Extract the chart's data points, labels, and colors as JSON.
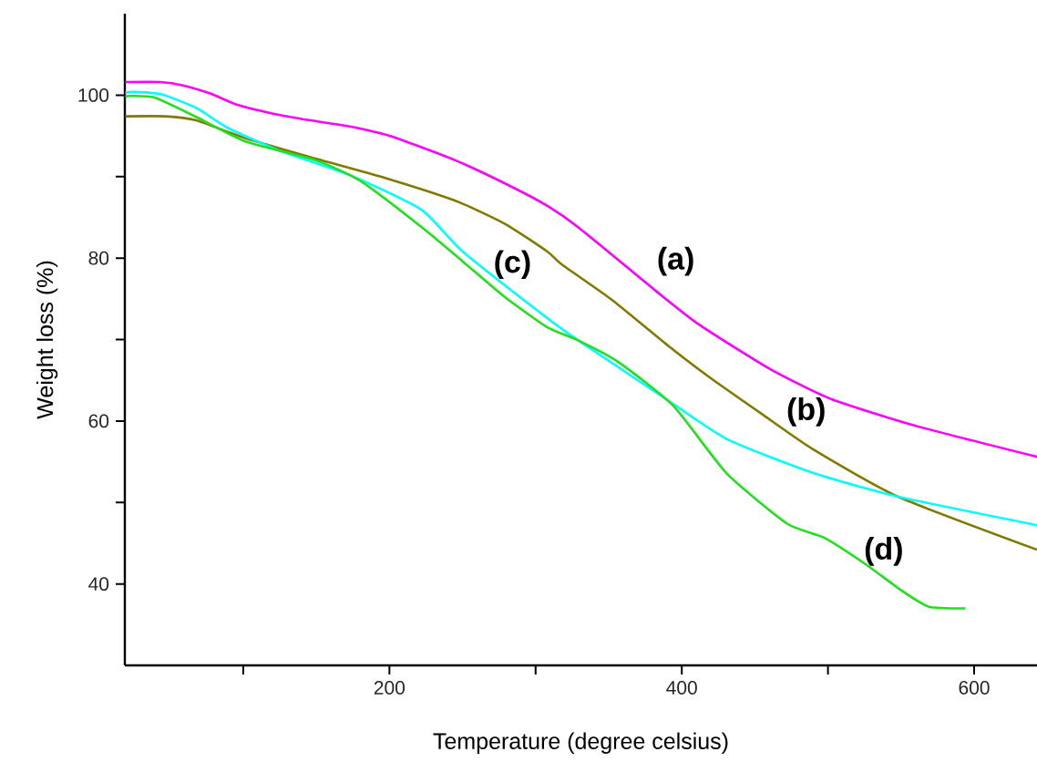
{
  "chart_data": {
    "type": "line",
    "xlabel": "Temperature (degree celsius)",
    "ylabel": "Weight loss (%)",
    "xlim": [
      19,
      643
    ],
    "ylim": [
      30,
      110
    ],
    "xticks": [
      {
        "value": 100,
        "label": null
      },
      200,
      {
        "value": 300,
        "label": null
      },
      400,
      {
        "value": 500,
        "label": null
      },
      600
    ],
    "yticks": [
      40,
      {
        "value": 50,
        "label": null
      },
      60,
      {
        "value": 70,
        "label": null
      },
      80,
      {
        "value": 90,
        "label": null
      },
      100
    ],
    "series": [
      {
        "name": "(a)",
        "color": "#ff00ff",
        "x": [
          19.3,
          43,
          58.6,
          77.3,
          96,
          121,
          146,
          171,
          200,
          245,
          283,
          308,
          329,
          382,
          412,
          460,
          502,
          560,
          643
        ],
        "values": [
          101.6,
          101.6,
          101.2,
          100.2,
          98.8,
          97.7,
          96.9,
          96.2,
          95.0,
          92.0,
          88.8,
          86.4,
          83.8,
          76.0,
          71.8,
          66.4,
          62.7,
          59.4,
          55.6
        ]
      },
      {
        "name": "(b)",
        "color": "#807a00",
        "x": [
          19.3,
          46.7,
          67.9,
          101.6,
          149.5,
          197.5,
          245.5,
          279,
          308,
          318,
          352,
          391,
          421,
          456,
          490,
          548,
          643
        ],
        "values": [
          97.4,
          97.4,
          96.9,
          94.7,
          92.2,
          89.8,
          87.0,
          84.2,
          80.8,
          79.2,
          74.9,
          69.2,
          65.1,
          60.7,
          56.5,
          50.7,
          44.2
        ]
      },
      {
        "name": "(c)",
        "color": "#00ffff",
        "x": [
          19.3,
          25,
          44,
          68,
          90,
          126,
          174,
          222,
          250,
          308,
          329,
          389,
          430.5,
          490,
          548,
          643
        ],
        "values": [
          100.3,
          100.4,
          100.1,
          98.4,
          95.9,
          93.1,
          90.1,
          85.9,
          80.8,
          72.6,
          69.9,
          62.7,
          57.8,
          53.6,
          50.7,
          47.2
        ]
      },
      {
        "name": "(d)",
        "color": "#22e01e",
        "x": [
          19.3,
          22.4,
          39.3,
          68,
          101.6,
          149.5,
          180.7,
          222,
          250,
          279,
          308,
          329,
          356,
          394,
          430.5,
          472,
          497,
          525,
          551,
          569,
          594
        ],
        "values": [
          99.8,
          99.9,
          99.7,
          97.3,
          94.3,
          92.0,
          89.4,
          83.8,
          79.6,
          75.2,
          71.5,
          69.9,
          67.3,
          61.9,
          53.6,
          47.4,
          45.7,
          42.5,
          39.1,
          37.2,
          37.0
        ]
      }
    ]
  }
}
